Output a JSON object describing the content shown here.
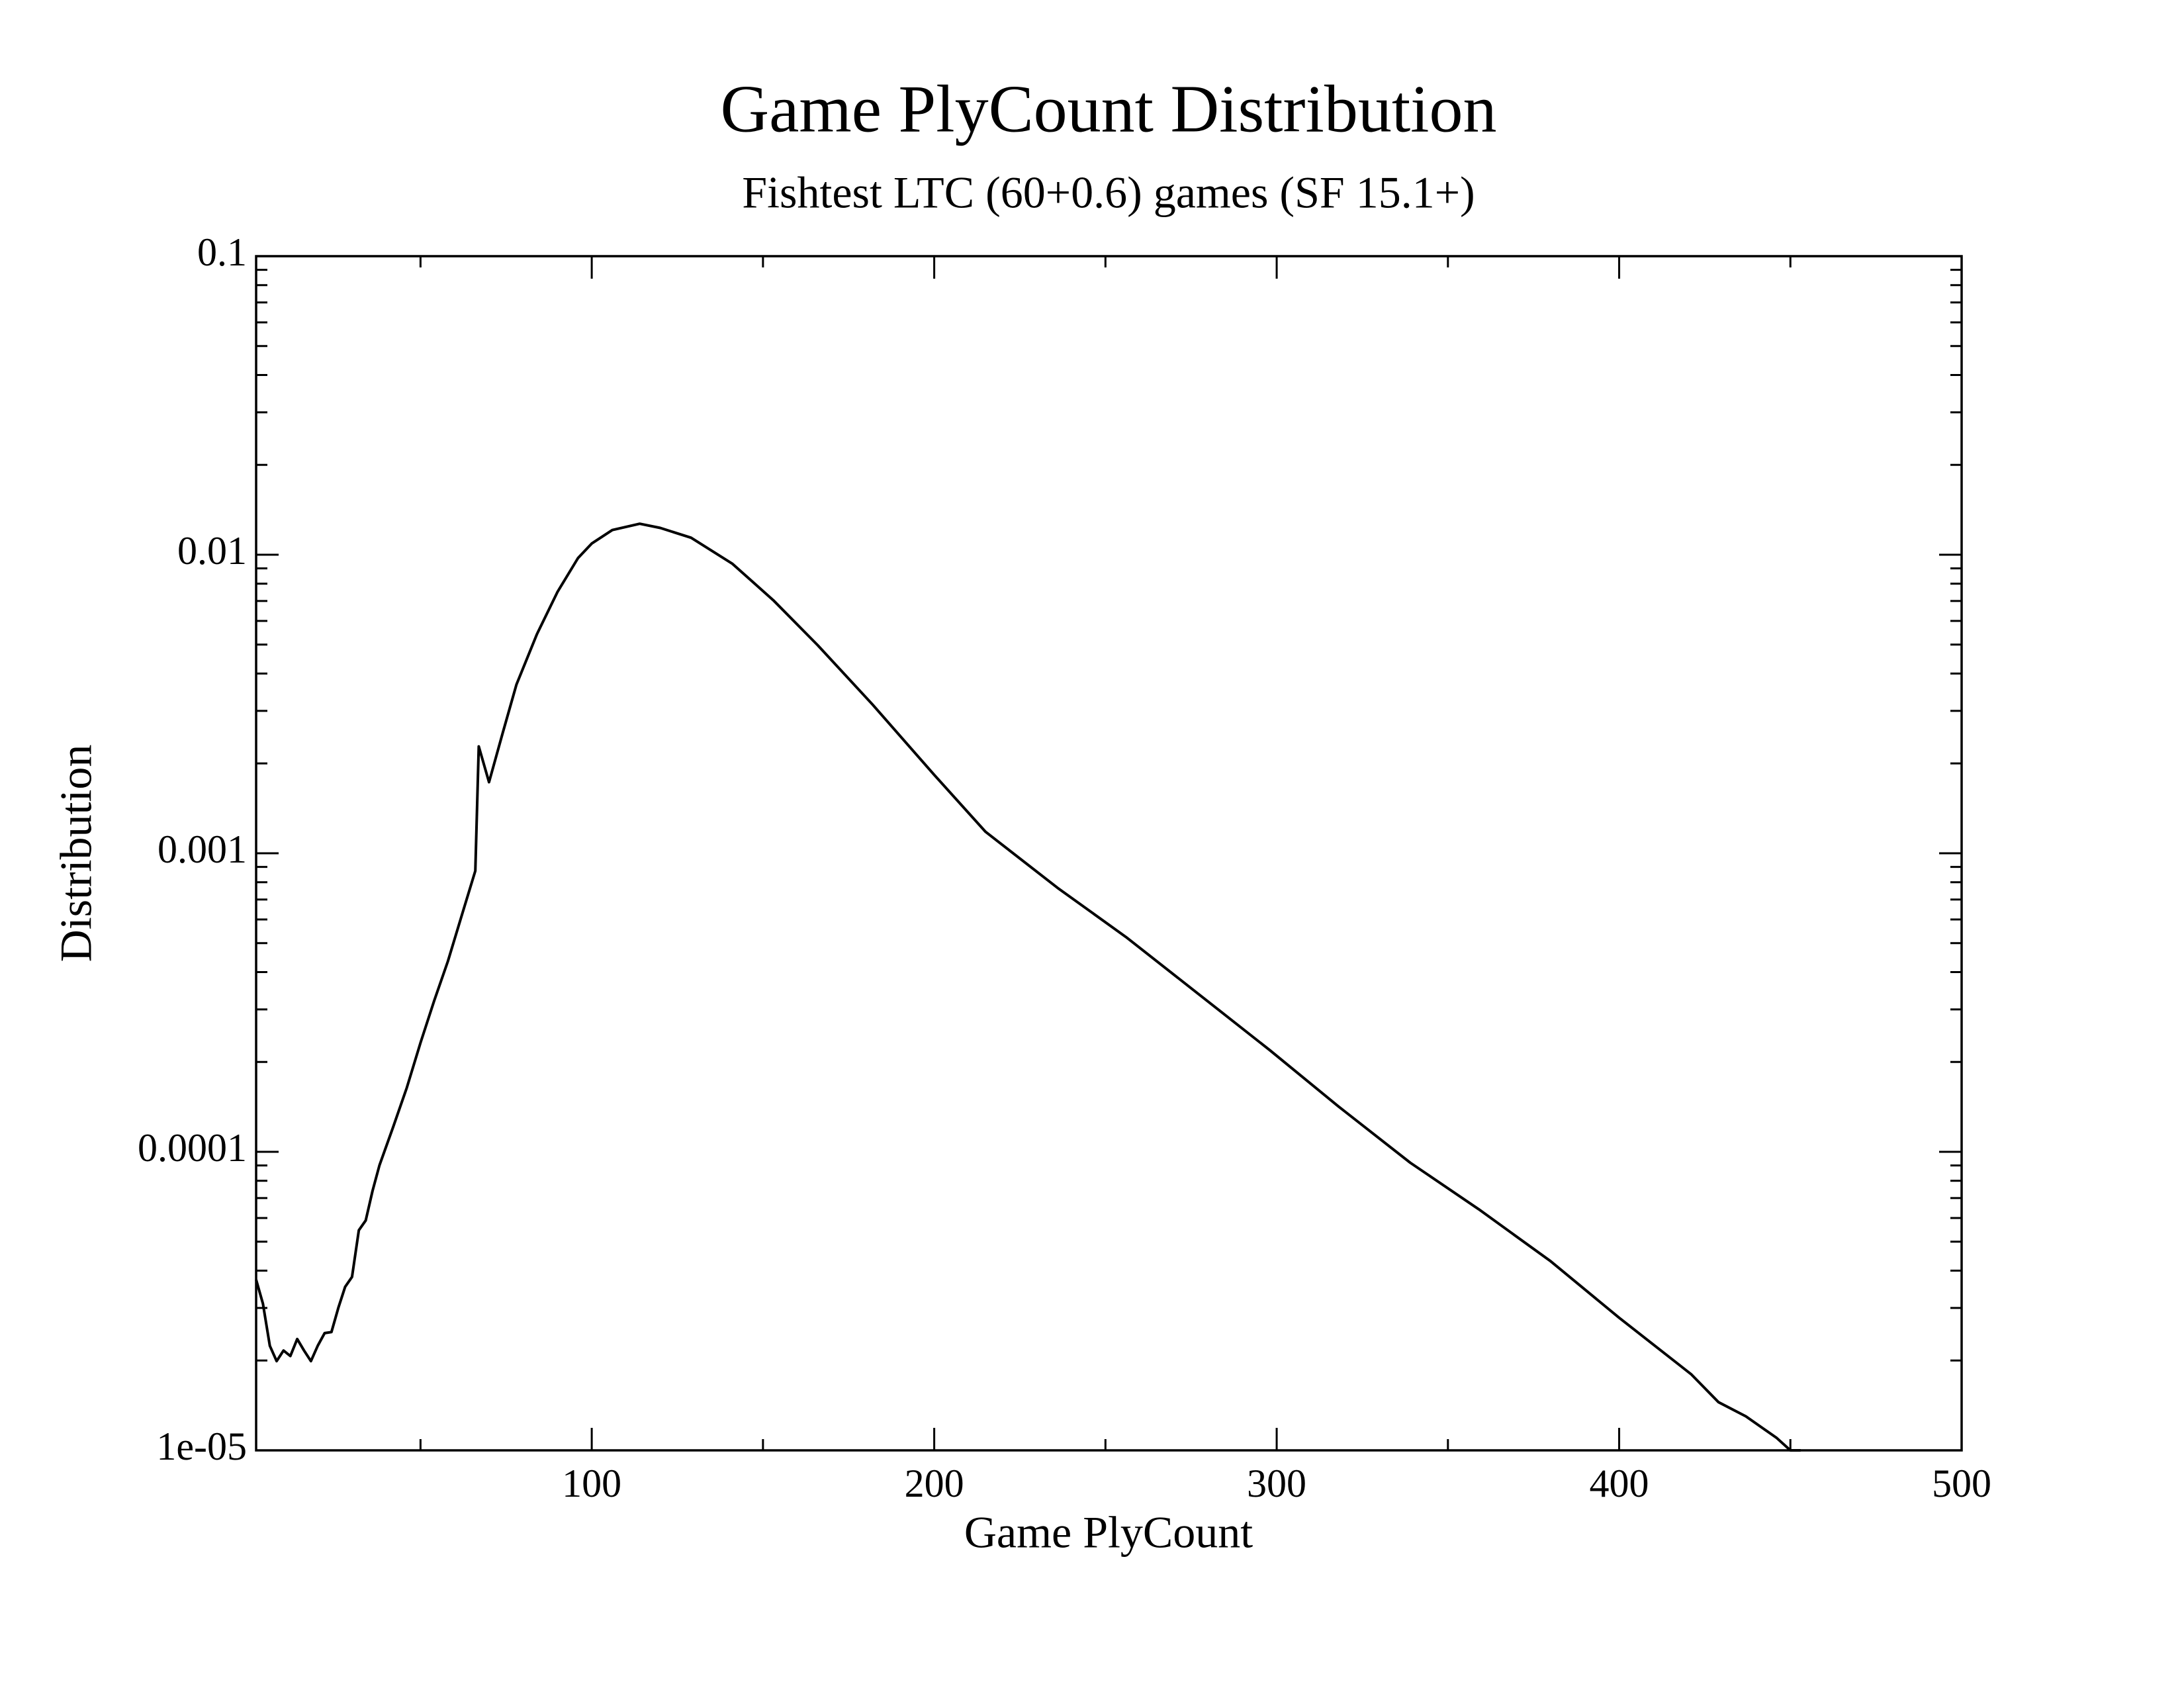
{
  "chart_data": {
    "type": "line",
    "title": "Game PlyCount Distribution",
    "subtitle": "Fishtest LTC (60+0.6) games (SF 15.1+)",
    "x_label": "Game PlyCount",
    "y_label": "Distribution",
    "y_scale": "log",
    "grid": false,
    "xlim": [
      2,
      500
    ],
    "xticks": [
      100,
      200,
      300,
      400,
      500
    ],
    "ylim": [
      1e-05,
      0.1
    ],
    "yticks": [
      {
        "value": 1e-05,
        "label": "1e-05"
      },
      0.0001,
      0.001,
      0.01,
      0.1
    ],
    "series": [
      {
        "name": "Distribution",
        "color": "#000000",
        "x": [
          2,
          4,
          6,
          8,
          10,
          12,
          14,
          16,
          18,
          20,
          22,
          24,
          26,
          28,
          30,
          32,
          34,
          36,
          38,
          42,
          46,
          50,
          54,
          58,
          62,
          66,
          67,
          70,
          74,
          78,
          84,
          90,
          96,
          100,
          106,
          114,
          120,
          129,
          141,
          153,
          166,
          182,
          200,
          215,
          236,
          256,
          277,
          298,
          318,
          339,
          359,
          380,
          400,
          421,
          429,
          437,
          446,
          450,
          453
        ],
        "values": [
          3.73e-05,
          3.1e-05,
          2.24e-05,
          1.99e-05,
          2.16e-05,
          2.07e-05,
          2.36e-05,
          2.16e-05,
          1.99e-05,
          2.24e-05,
          2.47e-05,
          2.49e-05,
          3e-05,
          3.53e-05,
          3.81e-05,
          5.46e-05,
          5.89e-05,
          7.4e-05,
          9e-05,
          0.000121,
          0.000164,
          0.000232,
          0.000321,
          0.000435,
          0.000617,
          0.000873,
          0.00228,
          0.00173,
          0.00253,
          0.00367,
          0.00542,
          0.00751,
          0.00975,
          0.0109,
          0.0121,
          0.0127,
          0.0123,
          0.0114,
          0.00934,
          0.00704,
          0.00497,
          0.00315,
          0.00183,
          0.00118,
          0.000766,
          0.000524,
          0.000339,
          0.000219,
          0.000142,
          9.19e-05,
          6.42e-05,
          4.3e-05,
          2.78e-05,
          1.8e-05,
          1.45e-05,
          1.3e-05,
          1.1e-05,
          1e-05,
          1e-05
        ]
      }
    ]
  }
}
